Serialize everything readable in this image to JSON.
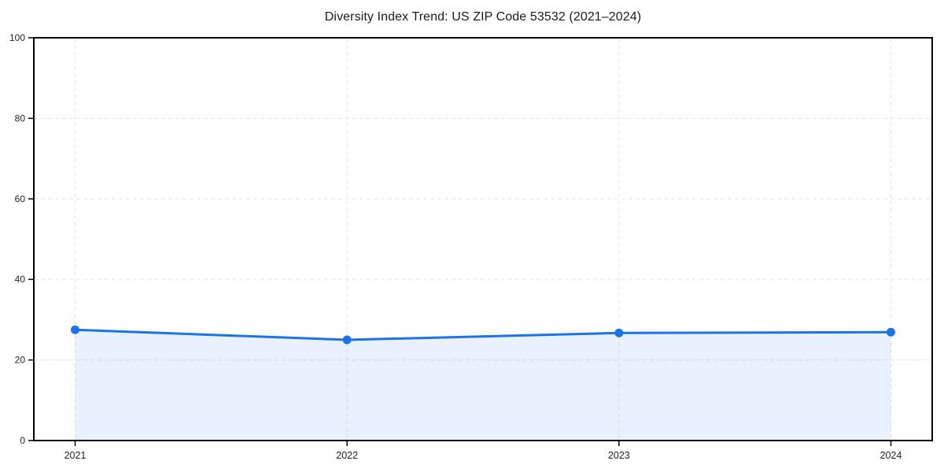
{
  "title": "Diversity Index Trend: US ZIP Code 53532 (2021–2024)",
  "chart_data": {
    "type": "line",
    "title": "Diversity Index Trend: US ZIP Code 53532 (2021–2024)",
    "x": [
      2021,
      2022,
      2023,
      2024
    ],
    "xticklabels": [
      "2021",
      "2022",
      "2023",
      "2024"
    ],
    "series": [
      {
        "name": "Diversity Index",
        "values": [
          27.5,
          25.0,
          26.7,
          26.9
        ]
      }
    ],
    "xlabel": "",
    "ylabel": "",
    "ylim": [
      0,
      100
    ],
    "yticks": [
      0,
      20,
      40,
      60,
      80,
      100
    ],
    "grid": "dashed both axes",
    "legend": "none",
    "area_fill": true,
    "marker": "circle",
    "colors": {
      "line": "#1a73e8",
      "marker": "#1a73e8",
      "fill": "rgba(26,115,232,0.10)",
      "grid": "#e4e4e4",
      "axis": "#000000",
      "tick_label": "#222222",
      "title": "#1a1a1a",
      "background": "#ffffff"
    }
  }
}
